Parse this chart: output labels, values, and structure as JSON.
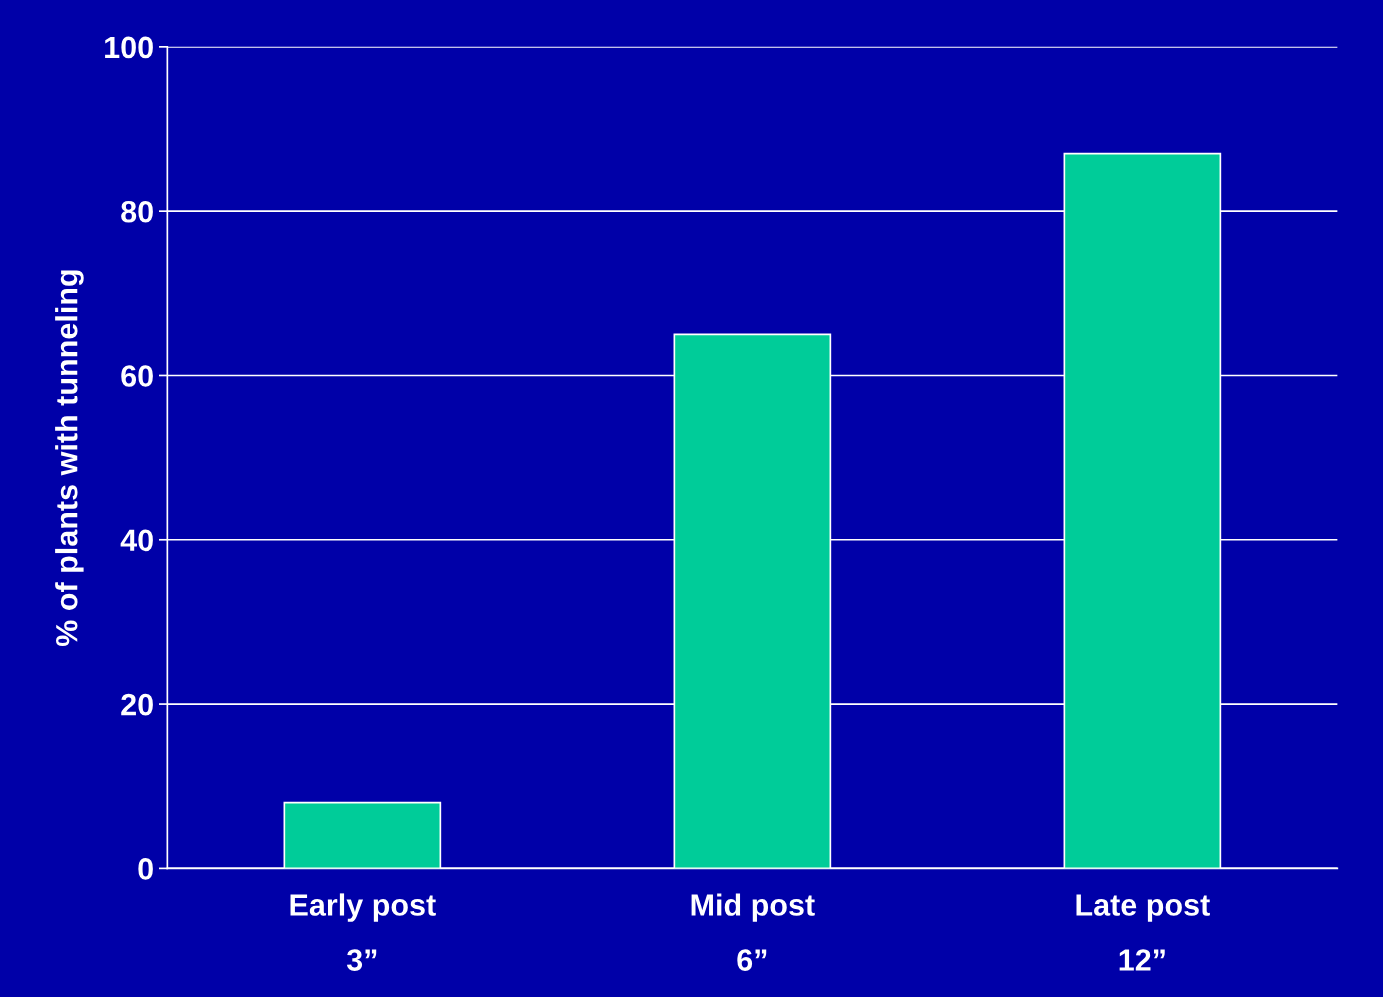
{
  "chart_data": {
    "type": "bar",
    "ylabel": "% of plants with tunneling",
    "categories": [
      "Early post\n3”",
      "Mid post\n6”",
      "Late post\n12”"
    ],
    "values": [
      8,
      65,
      87
    ],
    "color": "#00cc99",
    "ylim": [
      0,
      100
    ],
    "yticks": [
      0,
      20,
      40,
      60,
      80,
      100
    ],
    "grid": "y",
    "legend": false
  }
}
